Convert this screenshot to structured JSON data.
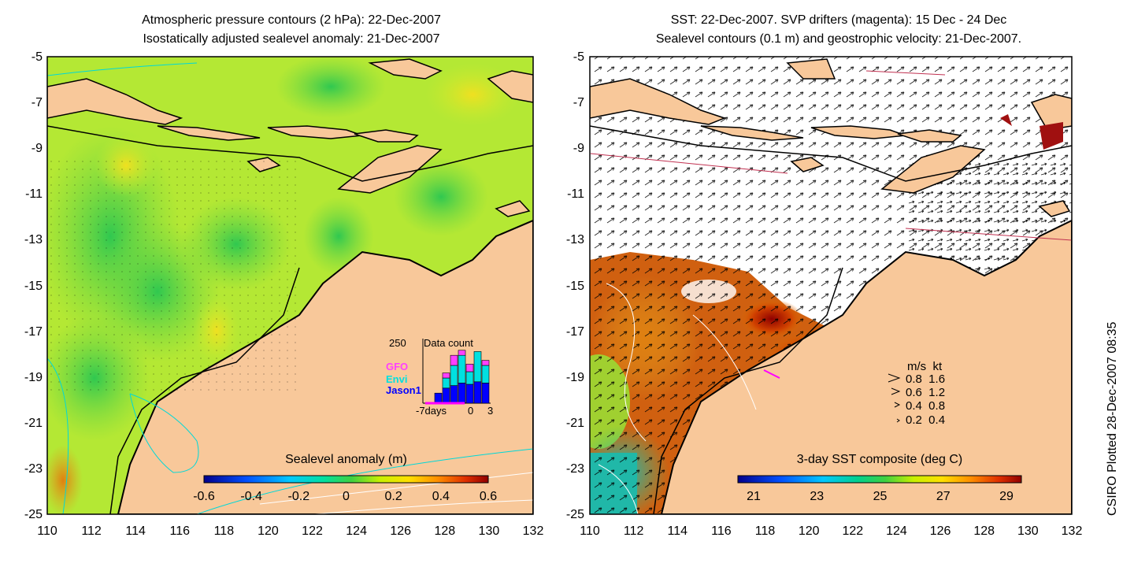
{
  "left_map": {
    "title_line1": "Atmospheric pressure contours (2 hPa): 22-Dec-2007",
    "title_line2": "Isostatically adjusted sealevel anomaly: 21-Dec-2007",
    "colorbar_title": "Sealevel anomaly (m)",
    "colorbar_ticks": [
      "-0.6",
      "-0.4",
      "-0.2",
      "0",
      "0.2",
      "0.4",
      "0.6"
    ],
    "colorbar_colors": [
      "#00008c",
      "#0050ff",
      "#00c8ff",
      "#00e0a0",
      "#40d040",
      "#c8f000",
      "#ffe000",
      "#ff9000",
      "#e03000",
      "#900000"
    ],
    "ocean_color": "#a8e830",
    "land_color": "#f8c89a",
    "inset": {
      "ymax_label": "250",
      "title": "Data count",
      "legend": [
        {
          "name": "GFO",
          "color": "#ff40ff"
        },
        {
          "name": "Envi",
          "color": "#00e0e0"
        },
        {
          "name": "Jason1",
          "color": "#0000ff"
        }
      ],
      "x_labels": [
        "-7days",
        "0",
        "3"
      ],
      "bars": [
        {
          "jason": 40,
          "envi": 0,
          "gfo": 0
        },
        {
          "jason": 60,
          "envi": 40,
          "gfo": 20
        },
        {
          "jason": 70,
          "envi": 80,
          "gfo": 40
        },
        {
          "jason": 80,
          "envi": 110,
          "gfo": 20
        },
        {
          "jason": 75,
          "envi": 50,
          "gfo": 30
        },
        {
          "jason": 85,
          "envi": 120,
          "gfo": 0
        },
        {
          "jason": 80,
          "envi": 70,
          "gfo": 20
        }
      ]
    }
  },
  "right_map": {
    "title_line1": "SST: 22-Dec-2007. SVP drifters (magenta): 15 Dec - 24 Dec",
    "title_line2": "Sealevel contours (0.1 m) and geostrophic velocity: 21-Dec-2007.",
    "colorbar_title": "3-day SST composite (deg C)",
    "colorbar_ticks": [
      "21",
      "23",
      "25",
      "27",
      "29"
    ],
    "colorbar_colors": [
      "#00008c",
      "#0050ff",
      "#00c8ff",
      "#00d090",
      "#40d040",
      "#c8f000",
      "#ffe000",
      "#ff9000",
      "#e03000",
      "#900000"
    ],
    "velocity_legend": {
      "header": "m/s  kt",
      "rows": [
        "0.8  1.6",
        "0.6  1.2",
        "0.4  0.8",
        "0.2  0.4"
      ]
    }
  },
  "shared_axes": {
    "y_ticks": [
      "-5",
      "-7",
      "-9",
      "-11",
      "-13",
      "-15",
      "-17",
      "-19",
      "-21",
      "-23",
      "-25"
    ],
    "x_ticks": [
      "110",
      "112",
      "114",
      "116",
      "118",
      "120",
      "122",
      "124",
      "126",
      "128",
      "130",
      "132"
    ]
  },
  "credit": "CSIRO Plotted 28-Dec-2007 08:35"
}
